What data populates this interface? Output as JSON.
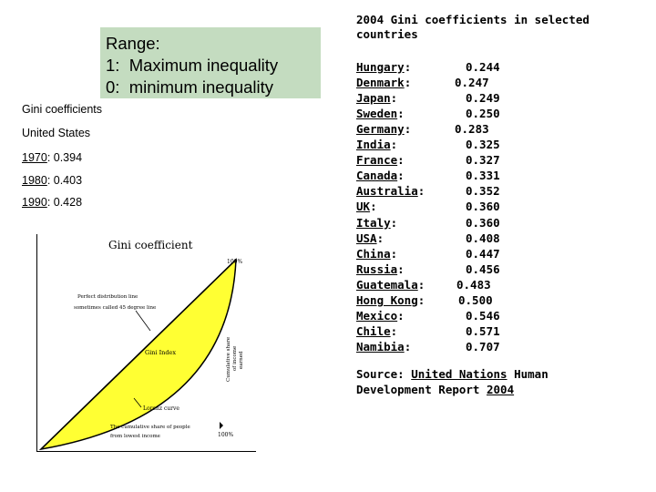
{
  "range_box": {
    "lines": [
      "Range:",
      "1:  Maximum inequality",
      "0:  minimum inequality"
    ]
  },
  "us_panel": {
    "heading": "Gini coefficients",
    "country": "United States",
    "entries": [
      {
        "year": "1970",
        "value": ": 0.394"
      },
      {
        "year": "1980",
        "value": ": 0.403"
      },
      {
        "year": "1990",
        "value": ": 0.428"
      }
    ]
  },
  "diagram": {
    "title": "Gini coefficient",
    "top_label": "100%",
    "equality_line_label_1": "Perfect distribution line",
    "equality_line_label_2": "sometimes called 45 degree line",
    "area_label": "Gini Index",
    "lorenz_label": "Lorenz curve",
    "axis_label_1": "Cumulative share",
    "axis_label_2": "of income",
    "axis_label_3": "earned",
    "bottom_label_1": "The cumulative share of people",
    "bottom_label_2": "from lowest income",
    "bottom_right_label": "100%",
    "colors": {
      "area_fill": "#ffff33",
      "line": "#000000"
    }
  },
  "right_panel": {
    "title": "2004 Gini coefficients in selected countries",
    "countries": [
      {
        "name": "Hungary",
        "value": "0.244"
      },
      {
        "name": "Denmark",
        "value": "0.247"
      },
      {
        "name": "Japan",
        "value": "0.249"
      },
      {
        "name": "Sweden",
        "value": "0.250"
      },
      {
        "name": "Germany",
        "value": "0.283"
      },
      {
        "name": "India",
        "value": "0.325"
      },
      {
        "name": "France",
        "value": "0.327"
      },
      {
        "name": "Canada",
        "value": "0.331"
      },
      {
        "name": "Australia",
        "value": "0.352"
      },
      {
        "name": "UK",
        "value": "0.360"
      },
      {
        "name": "Italy",
        "value": "0.360"
      },
      {
        "name": "USA",
        "value": "0.408"
      },
      {
        "name": "China",
        "value": "0.447"
      },
      {
        "name": "Russia",
        "value": "0.456"
      },
      {
        "name": "Guatemala",
        "value": "0.483"
      },
      {
        "name": "Hong Kong",
        "value": "0.500"
      },
      {
        "name": "Mexico",
        "value": "0.546"
      },
      {
        "name": "Chile",
        "value": "0.571"
      },
      {
        "name": "Namibia",
        "value": "0.707"
      }
    ],
    "source_prefix": "Source: ",
    "source_link_1": "United Nations",
    "source_middle": " Human Development Report ",
    "source_link_2": "2004"
  }
}
